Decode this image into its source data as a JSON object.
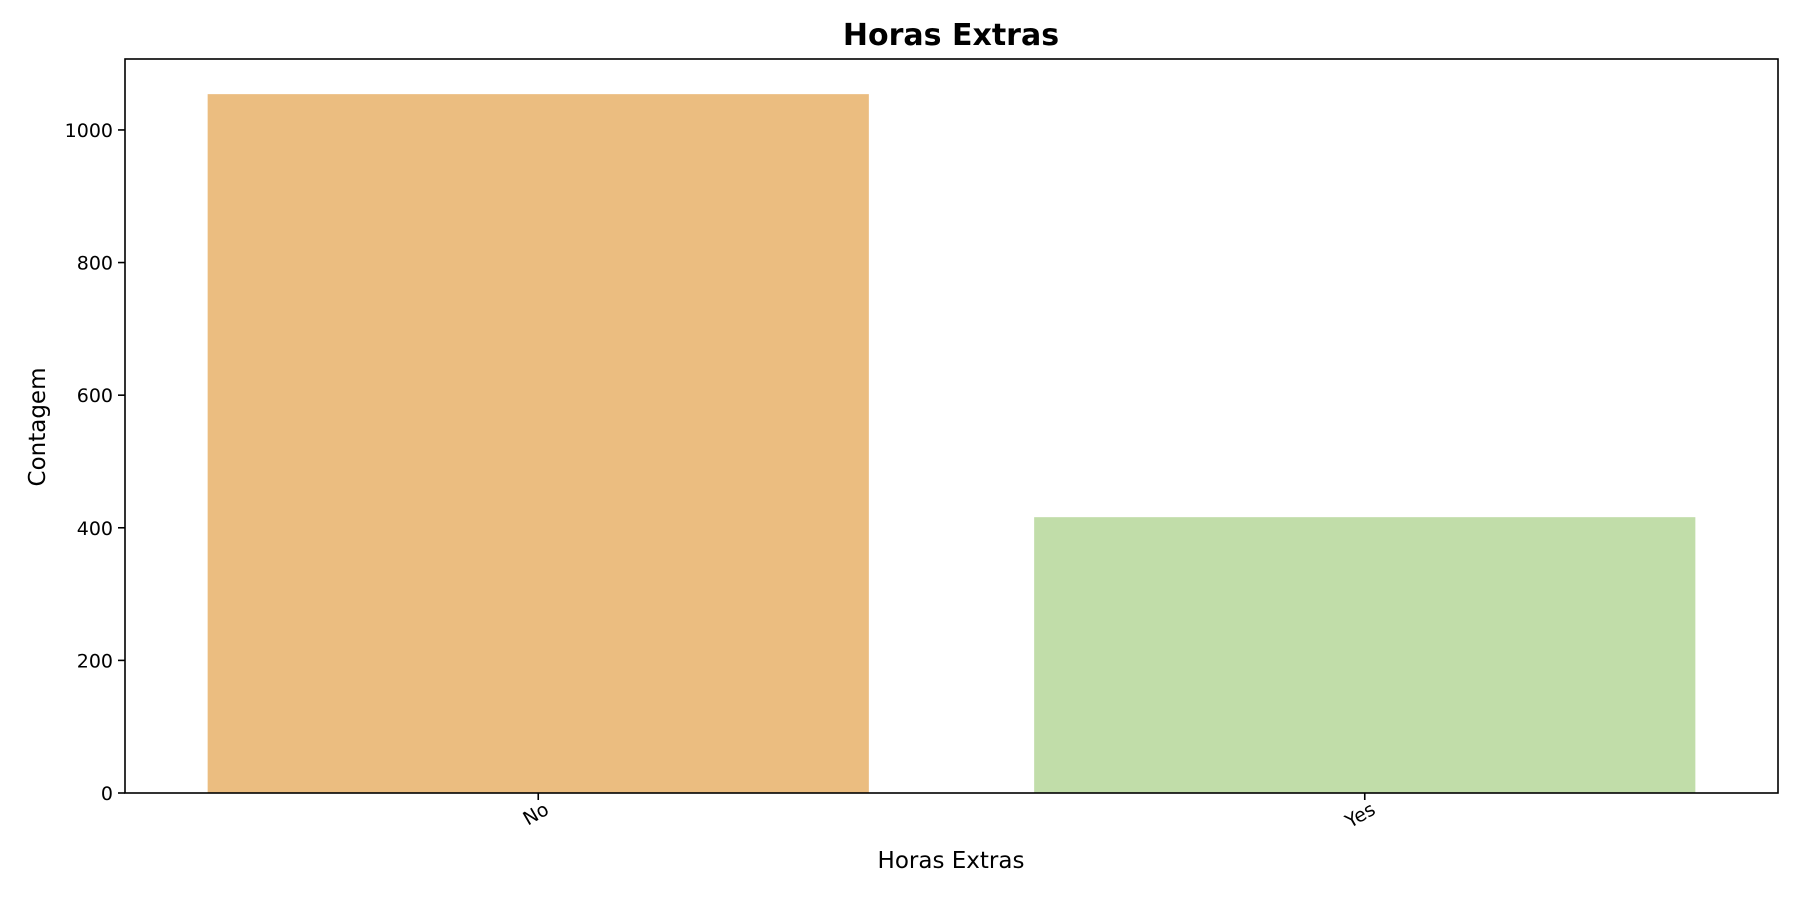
{
  "chart_data": {
    "type": "bar",
    "title": "Horas Extras",
    "xlabel": "Horas Extras",
    "ylabel": "Contagem",
    "categories": [
      "No",
      "Yes"
    ],
    "values": [
      1054,
      416
    ],
    "colors": [
      "#ebbd80",
      "#c1dda9"
    ],
    "ylim": [
      0,
      1107
    ],
    "yticks": [
      0,
      200,
      400,
      600,
      800,
      1000
    ],
    "xtick_rotation": -30,
    "grid": false,
    "legend": "none"
  }
}
